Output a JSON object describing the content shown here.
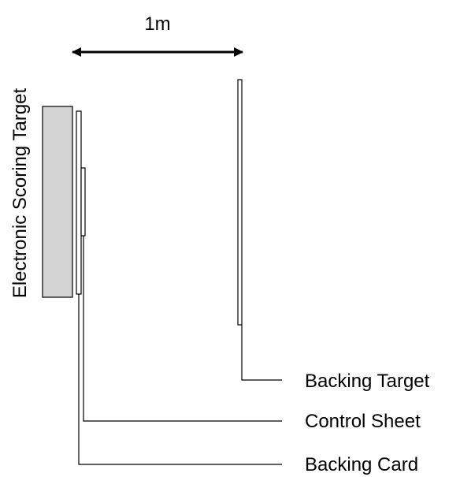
{
  "distance_label": "1m",
  "labels": {
    "electronic_scoring_target": "Electronic Scoring Target",
    "backing_target": "Backing Target",
    "control_sheet": "Control Sheet",
    "backing_card": "Backing Card"
  },
  "colors": {
    "scoring_target_fill": "#d4d4d4",
    "stroke": "#000000",
    "sheet_fill": "#ffffff"
  }
}
